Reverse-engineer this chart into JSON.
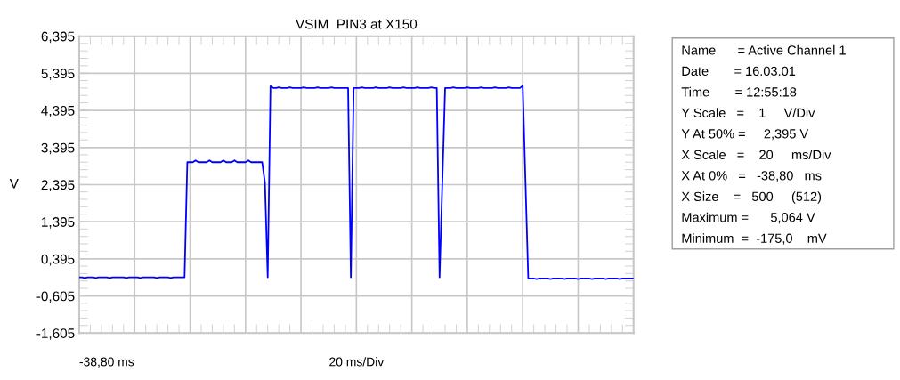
{
  "chart_data": {
    "type": "line",
    "title": "VSIM  PIN3 at X150",
    "ylabel": "V",
    "categories": [
      null,
      null,
      null,
      null,
      null,
      null,
      null,
      null,
      null,
      null,
      null,
      null,
      null,
      null,
      null,
      null,
      null,
      null,
      null,
      null,
      null,
      null,
      null,
      null,
      null,
      null,
      null,
      null,
      null,
      null,
      null,
      null,
      null,
      null,
      null,
      null,
      null,
      null,
      null,
      null,
      null,
      null,
      null,
      null,
      null,
      null,
      null,
      null,
      null,
      null,
      null,
      null,
      null,
      null,
      null,
      null,
      null,
      null,
      null,
      null,
      null,
      null,
      null,
      null,
      null,
      null,
      null,
      null,
      null,
      null,
      null,
      null,
      null,
      null,
      null,
      null,
      null,
      null,
      null,
      null,
      null,
      null,
      null,
      null,
      null,
      null,
      null,
      null,
      null,
      null,
      null,
      null,
      null,
      null,
      null,
      null,
      null,
      null,
      null,
      null,
      null,
      null,
      null,
      null,
      null,
      null,
      null,
      null,
      null,
      null,
      null,
      null,
      null,
      null,
      null,
      null,
      null,
      null,
      null,
      null,
      null,
      null,
      null,
      null,
      null,
      null,
      null,
      null,
      null,
      null,
      null,
      null,
      null,
      null,
      null,
      null,
      null,
      null,
      null,
      null,
      null,
      null,
      null,
      null,
      null,
      null,
      null,
      null,
      null,
      null,
      null,
      null,
      null,
      null,
      null,
      null,
      null,
      null,
      null,
      null,
      null,
      null,
      null,
      null,
      null,
      null,
      null,
      null,
      null,
      null,
      null,
      null,
      null,
      null,
      null,
      null,
      null,
      null,
      null,
      null,
      null,
      null,
      null,
      null,
      null,
      null,
      null,
      null,
      null,
      null,
      null,
      null,
      null,
      null,
      null,
      null,
      null,
      null,
      null,
      null,
      null
    ],
    "ylim": [
      -1.605,
      6.395
    ],
    "yticks": [
      {
        "value": -1.605,
        "label": "-1,605"
      },
      {
        "value": -0.605,
        "label": "-0,605"
      },
      {
        "value": 0.395,
        "label": "0,395"
      },
      {
        "value": 1.395,
        "label": "1,395"
      },
      {
        "value": 2.395,
        "label": "2,395"
      },
      {
        "value": 3.395,
        "label": "3,395"
      },
      {
        "value": 4.395,
        "label": "4,395"
      },
      {
        "value": 5.395,
        "label": "5,395"
      },
      {
        "value": 6.395,
        "label": "6,395"
      }
    ],
    "grid": true,
    "legend": false,
    "marker": "none",
    "line_style": "solid",
    "series": [
      {
        "color": "#0000ff",
        "values": [
          -0.1,
          -0.1,
          -0.12,
          -0.1,
          -0.1,
          -0.1,
          -0.12,
          -0.1,
          -0.1,
          -0.1,
          -0.1,
          -0.12,
          -0.1,
          -0.1,
          -0.1,
          -0.1,
          -0.1,
          -0.12,
          -0.1,
          -0.1,
          -0.1,
          -0.1,
          -0.12,
          -0.1,
          -0.1,
          -0.1,
          -0.1,
          -0.1,
          -0.12,
          -0.1,
          -0.1,
          -0.1,
          -0.1,
          -0.12,
          -0.1,
          -0.1,
          -0.1,
          -0.1,
          -0.1,
          3.0,
          3.0,
          3.0,
          3.05,
          3.0,
          3.0,
          3.0,
          3.0,
          3.05,
          3.0,
          3.0,
          3.0,
          3.0,
          3.05,
          3.0,
          3.0,
          3.0,
          3.05,
          3.0,
          3.0,
          3.0,
          3.0,
          3.05,
          3.0,
          3.0,
          3.0,
          3.0,
          3.0,
          2.45,
          -0.1,
          5.05,
          5.0,
          5.0,
          5.02,
          5.0,
          5.0,
          5.0,
          5.02,
          5.0,
          5.0,
          5.0,
          5.0,
          5.02,
          5.0,
          5.0,
          5.0,
          5.0,
          5.02,
          5.0,
          5.0,
          5.0,
          5.0,
          5.02,
          5.0,
          5.0,
          5.0,
          5.0,
          5.0,
          5.0,
          -0.1,
          5.0,
          5.0,
          5.0,
          5.02,
          5.0,
          5.0,
          5.0,
          5.0,
          5.02,
          5.0,
          5.0,
          5.0,
          5.0,
          5.02,
          5.0,
          5.0,
          5.0,
          5.0,
          5.02,
          5.0,
          5.0,
          5.0,
          5.0,
          5.02,
          5.0,
          5.0,
          5.0,
          5.0,
          5.02,
          5.0,
          5.0,
          -0.1,
          2.45,
          5.0,
          5.0,
          5.0,
          5.02,
          5.0,
          5.0,
          5.0,
          5.0,
          5.02,
          5.0,
          5.0,
          5.0,
          5.0,
          5.02,
          5.0,
          5.0,
          5.0,
          5.0,
          5.02,
          5.0,
          5.0,
          5.0,
          5.0,
          5.02,
          5.0,
          5.0,
          5.0,
          5.0,
          5.06,
          2.45,
          -0.13,
          -0.13,
          -0.13,
          -0.15,
          -0.13,
          -0.13,
          -0.13,
          -0.13,
          -0.15,
          -0.13,
          -0.13,
          -0.13,
          -0.13,
          -0.15,
          -0.13,
          -0.13,
          -0.13,
          -0.13,
          -0.15,
          -0.13,
          -0.13,
          -0.13,
          -0.13,
          -0.15,
          -0.13,
          -0.13,
          -0.13,
          -0.13,
          -0.15,
          -0.13,
          -0.13,
          -0.13,
          -0.13,
          -0.15,
          -0.13,
          -0.13,
          -0.13,
          -0.13,
          -0.13
        ]
      }
    ],
    "annotations": [
      "-38,80 ms",
      "20 ms/Div",
      "Name      = Active Channel 1",
      "Date       = 16.03.01",
      "Time       = 12:55:18",
      "Y Scale   =    1     V/Div",
      "Y At 50% =     2,395 V",
      "X Scale   =    20     ms/Div",
      "X At 0%   =   -38,80   ms",
      "X Size    =   500     (512)",
      "Maximum =      5,064 V",
      "Minimum  =  -175,0    mV"
    ]
  }
}
